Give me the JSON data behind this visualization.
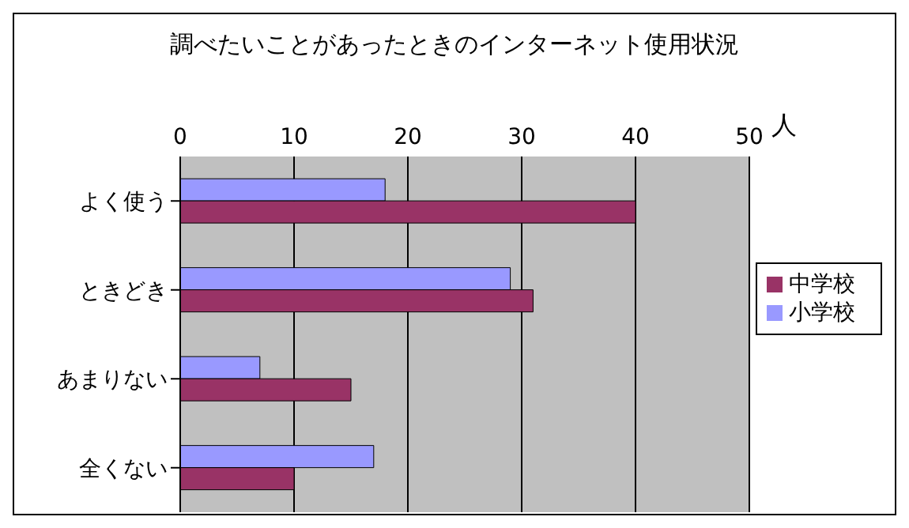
{
  "chart_data": {
    "type": "bar",
    "orientation": "horizontal",
    "title": "調べたいことがあったときのインターネット使用状況",
    "xlabel": "人",
    "categories": [
      "よく使う",
      "ときどき",
      "あまりない",
      "全くない"
    ],
    "series": [
      {
        "name": "小学校",
        "color": "#9999ff",
        "values": [
          18,
          29,
          7,
          17
        ]
      },
      {
        "name": "中学校",
        "color": "#993366",
        "values": [
          40,
          31,
          15,
          10
        ]
      }
    ],
    "xlim": [
      0,
      50
    ],
    "xticks": [
      0,
      10,
      20,
      30,
      40,
      50
    ],
    "grid": "x",
    "legend": "right"
  }
}
